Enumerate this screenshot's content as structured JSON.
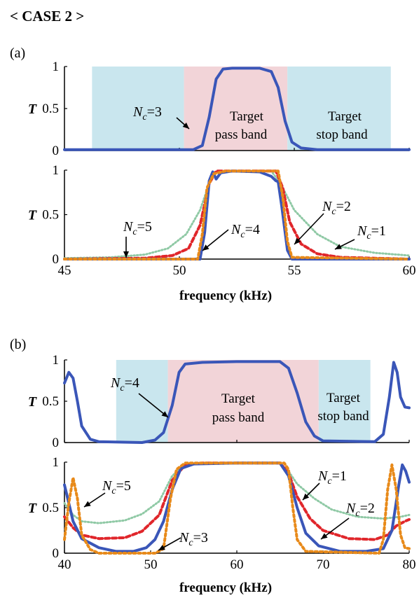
{
  "header": {
    "title": "< CASE 2 >"
  },
  "colors": {
    "pass_band": "#f2d4d8",
    "stop_band": "#c9e6ee",
    "nc1": "#8fc9a5",
    "nc2": "#e0262b",
    "nc3": "#3a56b8",
    "nc4": "#e88a1a",
    "axis": "#000000"
  },
  "chart_data": [
    {
      "panel": "(a)",
      "type": "line",
      "xlabel": "frequency (kHz)",
      "ylabel": "T",
      "x_ticks": [
        "45",
        "50",
        "55",
        "60"
      ],
      "y_ticks": [
        "0",
        "0.5",
        "1"
      ],
      "xlim": [
        45,
        60
      ],
      "ylim": [
        0,
        1
      ],
      "bands": [
        {
          "kind": "stop",
          "from": 46.2,
          "to": 50.2
        },
        {
          "kind": "pass",
          "from": 50.2,
          "to": 54.7
        },
        {
          "kind": "stop",
          "from": 54.7,
          "to": 59.2
        }
      ],
      "band_labels": {
        "pass": [
          "Target",
          "pass band"
        ],
        "stop": [
          "Target",
          "stop band"
        ]
      },
      "top_curve": {
        "nc_label": "3",
        "points": [
          [
            45,
            0.01
          ],
          [
            50.6,
            0.01
          ],
          [
            51.0,
            0.06
          ],
          [
            51.3,
            0.4
          ],
          [
            51.6,
            0.85
          ],
          [
            51.9,
            0.97
          ],
          [
            52.3,
            0.98
          ],
          [
            53.5,
            0.98
          ],
          [
            54.0,
            0.94
          ],
          [
            54.3,
            0.75
          ],
          [
            54.6,
            0.35
          ],
          [
            54.9,
            0.1
          ],
          [
            55.3,
            0.03
          ],
          [
            56,
            0.01
          ],
          [
            60,
            0.01
          ]
        ]
      },
      "bottom_series": [
        {
          "nc_label": "1",
          "style": "dotted",
          "color_key": "nc1",
          "points": [
            [
              45,
              0.01
            ],
            [
              47,
              0.02
            ],
            [
              48.5,
              0.05
            ],
            [
              49.5,
              0.12
            ],
            [
              50.3,
              0.28
            ],
            [
              50.9,
              0.55
            ],
            [
              51.3,
              0.85
            ],
            [
              51.6,
              0.99
            ],
            [
              54.0,
              0.99
            ],
            [
              54.4,
              0.85
            ],
            [
              55.0,
              0.55
            ],
            [
              56.0,
              0.28
            ],
            [
              57.0,
              0.14
            ],
            [
              58.5,
              0.07
            ],
            [
              60,
              0.04
            ]
          ]
        },
        {
          "nc_label": "2",
          "style": "dashed",
          "color_key": "nc2",
          "points": [
            [
              45,
              0.0
            ],
            [
              48.5,
              0.01
            ],
            [
              49.7,
              0.04
            ],
            [
              50.4,
              0.12
            ],
            [
              50.9,
              0.38
            ],
            [
              51.3,
              0.85
            ],
            [
              51.6,
              0.99
            ],
            [
              54.2,
              0.99
            ],
            [
              54.5,
              0.8
            ],
            [
              54.8,
              0.42
            ],
            [
              55.3,
              0.17
            ],
            [
              56.0,
              0.06
            ],
            [
              57.0,
              0.02
            ],
            [
              60,
              0.0
            ]
          ]
        },
        {
          "nc_label": "5",
          "style": "solid",
          "color_key": "nc3",
          "points": [
            [
              45,
              0.0
            ],
            [
              50.9,
              0.0
            ],
            [
              51.1,
              0.3
            ],
            [
              51.3,
              0.88
            ],
            [
              51.45,
              0.98
            ],
            [
              51.6,
              0.9
            ],
            [
              51.8,
              0.97
            ],
            [
              52.3,
              0.99
            ],
            [
              53.5,
              0.98
            ],
            [
              54.0,
              0.93
            ],
            [
              54.2,
              0.88
            ],
            [
              54.3,
              0.87
            ],
            [
              54.45,
              0.6
            ],
            [
              54.7,
              0.1
            ],
            [
              54.9,
              0.0
            ],
            [
              60,
              0.0
            ]
          ]
        },
        {
          "nc_label": "4",
          "style": "dashed-orange",
          "color_key": "nc4",
          "points": [
            [
              45,
              0.0
            ],
            [
              50.8,
              0.0
            ],
            [
              51.0,
              0.28
            ],
            [
              51.2,
              0.8
            ],
            [
              51.5,
              0.96
            ],
            [
              52.0,
              0.99
            ],
            [
              54.3,
              0.99
            ],
            [
              54.5,
              0.7
            ],
            [
              54.7,
              0.2
            ],
            [
              54.9,
              0.02
            ],
            [
              60,
              0.0
            ]
          ]
        }
      ],
      "bottom_labels": [
        "5",
        "4",
        "2",
        "1"
      ]
    },
    {
      "panel": "(b)",
      "type": "line",
      "xlabel": "frequency (kHz)",
      "ylabel": "T",
      "x_ticks": [
        "40",
        "50",
        "60",
        "70",
        "80"
      ],
      "y_ticks": [
        "0",
        "0.5",
        "1"
      ],
      "xlim": [
        40,
        80
      ],
      "ylim": [
        0,
        1
      ],
      "bands": [
        {
          "kind": "stop",
          "from": 46.0,
          "to": 52.0
        },
        {
          "kind": "pass",
          "from": 52.0,
          "to": 69.5
        },
        {
          "kind": "stop",
          "from": 69.5,
          "to": 75.5
        }
      ],
      "band_labels": {
        "pass": [
          "Target",
          "pass band"
        ],
        "stop": [
          "Target",
          "stop band"
        ]
      },
      "top_curve": {
        "nc_label": "4",
        "points": [
          [
            40,
            0.72
          ],
          [
            40.5,
            0.85
          ],
          [
            41.0,
            0.78
          ],
          [
            41.5,
            0.5
          ],
          [
            42,
            0.2
          ],
          [
            43,
            0.04
          ],
          [
            44,
            0.01
          ],
          [
            49,
            0.0
          ],
          [
            50.5,
            0.03
          ],
          [
            51.5,
            0.12
          ],
          [
            52.5,
            0.45
          ],
          [
            53.3,
            0.85
          ],
          [
            54,
            0.95
          ],
          [
            56,
            0.97
          ],
          [
            60,
            0.98
          ],
          [
            65,
            0.98
          ],
          [
            66,
            0.9
          ],
          [
            67,
            0.6
          ],
          [
            68,
            0.25
          ],
          [
            69,
            0.08
          ],
          [
            70,
            0.02
          ],
          [
            76,
            0.01
          ],
          [
            77,
            0.1
          ],
          [
            77.7,
            0.55
          ],
          [
            78.2,
            0.97
          ],
          [
            78.6,
            0.85
          ],
          [
            79,
            0.55
          ],
          [
            79.5,
            0.43
          ],
          [
            80,
            0.42
          ]
        ]
      },
      "bottom_series": [
        {
          "nc_label": "1",
          "style": "dotted",
          "color_key": "nc1",
          "points": [
            [
              40,
              0.55
            ],
            [
              41,
              0.42
            ],
            [
              42,
              0.35
            ],
            [
              44,
              0.33
            ],
            [
              47,
              0.36
            ],
            [
              49,
              0.43
            ],
            [
              51,
              0.57
            ],
            [
              52.5,
              0.85
            ],
            [
              54,
              0.97
            ],
            [
              56,
              0.99
            ],
            [
              65,
              0.99
            ],
            [
              66,
              0.9
            ],
            [
              67,
              0.76
            ],
            [
              69,
              0.6
            ],
            [
              71,
              0.48
            ],
            [
              74,
              0.4
            ],
            [
              77,
              0.38
            ],
            [
              79,
              0.4
            ],
            [
              80,
              0.42
            ]
          ]
        },
        {
          "nc_label": "2",
          "style": "dashed",
          "color_key": "nc2",
          "points": [
            [
              40,
              0.4
            ],
            [
              41,
              0.28
            ],
            [
              42,
              0.2
            ],
            [
              44,
              0.16
            ],
            [
              47,
              0.17
            ],
            [
              49,
              0.24
            ],
            [
              51,
              0.42
            ],
            [
              52.5,
              0.8
            ],
            [
              54,
              0.97
            ],
            [
              56,
              0.99
            ],
            [
              65,
              0.99
            ],
            [
              66,
              0.88
            ],
            [
              67,
              0.62
            ],
            [
              68.5,
              0.38
            ],
            [
              70,
              0.25
            ],
            [
              73,
              0.16
            ],
            [
              76,
              0.15
            ],
            [
              77.5,
              0.2
            ],
            [
              78.5,
              0.3
            ],
            [
              79.5,
              0.35
            ],
            [
              80,
              0.37
            ]
          ]
        },
        {
          "nc_label": "3",
          "style": "solid",
          "color_key": "nc3",
          "points": [
            [
              40,
              0.75
            ],
            [
              40.5,
              0.55
            ],
            [
              41,
              0.35
            ],
            [
              42,
              0.16
            ],
            [
              44,
              0.06
            ],
            [
              46,
              0.02
            ],
            [
              48,
              0.02
            ],
            [
              49.5,
              0.06
            ],
            [
              50.5,
              0.15
            ],
            [
              51.5,
              0.35
            ],
            [
              52.5,
              0.7
            ],
            [
              53.5,
              0.93
            ],
            [
              55,
              0.98
            ],
            [
              60,
              0.99
            ],
            [
              65,
              0.99
            ],
            [
              66,
              0.85
            ],
            [
              67,
              0.5
            ],
            [
              68,
              0.22
            ],
            [
              69.5,
              0.08
            ],
            [
              72,
              0.02
            ],
            [
              75,
              0.02
            ],
            [
              77,
              0.05
            ],
            [
              78,
              0.25
            ],
            [
              78.8,
              0.75
            ],
            [
              79.2,
              0.97
            ],
            [
              79.6,
              0.9
            ],
            [
              80,
              0.78
            ]
          ]
        },
        {
          "nc_label": "5",
          "style": "dashed-orange",
          "color_key": "nc4",
          "points": [
            [
              40,
              0.15
            ],
            [
              40.5,
              0.55
            ],
            [
              41,
              0.83
            ],
            [
              41.5,
              0.6
            ],
            [
              42,
              0.2
            ],
            [
              43,
              0.04
            ],
            [
              44,
              0.0
            ],
            [
              50.5,
              0.0
            ],
            [
              51.5,
              0.05
            ],
            [
              52.3,
              0.6
            ],
            [
              53,
              0.92
            ],
            [
              54,
              0.99
            ],
            [
              65.5,
              0.99
            ],
            [
              66,
              0.92
            ],
            [
              66.5,
              0.5
            ],
            [
              67,
              0.15
            ],
            [
              68,
              0.02
            ],
            [
              76.5,
              0.0
            ],
            [
              77,
              0.15
            ],
            [
              77.5,
              0.7
            ],
            [
              78,
              0.97
            ],
            [
              78.5,
              0.7
            ],
            [
              79,
              0.2
            ],
            [
              79.5,
              0.06
            ],
            [
              80,
              0.05
            ]
          ]
        }
      ],
      "bottom_labels": [
        "5",
        "3",
        "1",
        "2"
      ]
    }
  ]
}
